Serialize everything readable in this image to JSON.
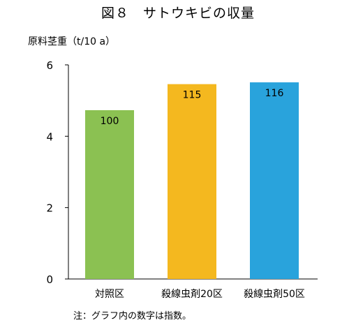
{
  "note": "注：グラフ内の数字は指数。",
  "chart_data": {
    "type": "bar",
    "title": "図８　サトウキビの収量",
    "ylabel": "原料茎重（t/10 a）",
    "xlabel": "",
    "ylim": [
      0,
      6
    ],
    "yticks": [
      0,
      2,
      4,
      6
    ],
    "categories": [
      "対照区",
      "殺線虫剤20区",
      "殺線虫剤50区"
    ],
    "values": [
      4.73,
      5.46,
      5.51
    ],
    "index_labels": [
      "100",
      "115",
      "116"
    ],
    "colors": [
      "#8bc152",
      "#f4b81f",
      "#29a3dc"
    ],
    "grid": false,
    "legend": "none"
  }
}
